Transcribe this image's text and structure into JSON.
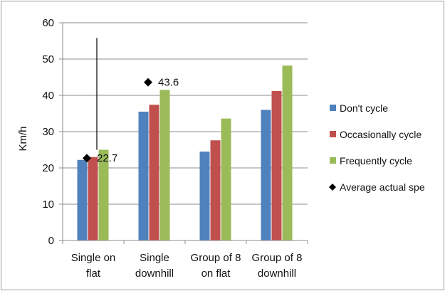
{
  "chart_data": {
    "type": "bar",
    "ylabel": "Km/h",
    "ylim": [
      0,
      60
    ],
    "yticks": [
      0,
      10,
      20,
      30,
      40,
      50,
      60
    ],
    "grid": true,
    "legend_position": "right",
    "categories": [
      [
        "Single on",
        "flat"
      ],
      [
        "Single",
        "downhill"
      ],
      [
        "Group of 8",
        "on flat"
      ],
      [
        "Group of 8",
        "downhill"
      ]
    ],
    "series": [
      {
        "name": "Don't cycle",
        "color": "#4f81bd",
        "values": [
          22.2,
          35.5,
          24.5,
          36.0
        ]
      },
      {
        "name": "Occasionally cycle",
        "color": "#c0504d",
        "values": [
          23.0,
          37.4,
          27.6,
          41.2
        ]
      },
      {
        "name": "Frequently cycle",
        "color": "#9bbb59",
        "values": [
          25.0,
          41.5,
          33.6,
          48.2
        ]
      }
    ],
    "markers": {
      "name": "Average actual spe",
      "color": "#000000",
      "points": [
        {
          "category_index": 0,
          "value": 22.7,
          "label": "22.7"
        },
        {
          "category_index": 1,
          "value": 43.6,
          "label": "43.6"
        }
      ]
    },
    "range_line": {
      "category_index": 0,
      "from": 25.0,
      "to": 55.8
    }
  }
}
